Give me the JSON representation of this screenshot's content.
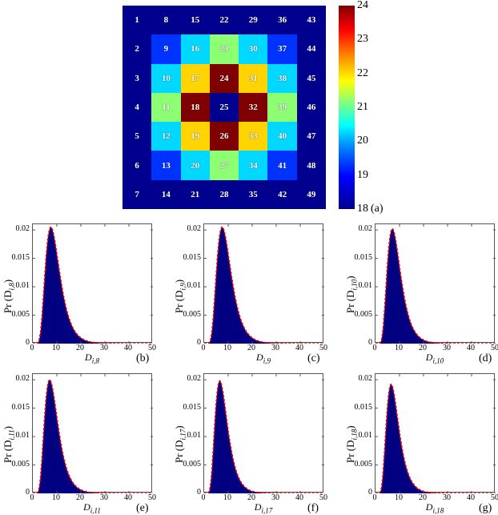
{
  "chart_data": [
    {
      "type": "heatmap",
      "panel": "(a)",
      "title": "",
      "grid_size": [
        7,
        7
      ],
      "cell_labels_column_major": [
        [
          1,
          2,
          3,
          4,
          5,
          6,
          7
        ],
        [
          8,
          9,
          10,
          11,
          12,
          13,
          14
        ],
        [
          15,
          16,
          17,
          18,
          19,
          20,
          21
        ],
        [
          22,
          23,
          24,
          25,
          26,
          27,
          28
        ],
        [
          29,
          30,
          31,
          32,
          33,
          34,
          35
        ],
        [
          36,
          37,
          38,
          39,
          40,
          41,
          42
        ],
        [
          43,
          44,
          45,
          46,
          47,
          48,
          49
        ]
      ],
      "values_row_major": [
        [
          18,
          18,
          18,
          18,
          18,
          18,
          18
        ],
        [
          18,
          19,
          20,
          21,
          20,
          19,
          18
        ],
        [
          18,
          20,
          22,
          24,
          22,
          20,
          18
        ],
        [
          18,
          21,
          24,
          18,
          24,
          21,
          18
        ],
        [
          18,
          20,
          22,
          24,
          22,
          20,
          18
        ],
        [
          18,
          19,
          20,
          21,
          20,
          19,
          18
        ],
        [
          18,
          18,
          18,
          18,
          18,
          18,
          18
        ]
      ],
      "colorbar": {
        "min": 18,
        "max": 24,
        "ticks": [
          "24",
          "23",
          "22",
          "21",
          "20",
          "19",
          "18"
        ],
        "colormap": "jet"
      }
    },
    {
      "type": "bar",
      "panel": "(b)",
      "xlabel": "D_{i,8}",
      "ylabel": "Pr(D_{i,8})",
      "xlim": [
        0,
        50
      ],
      "ylim": [
        0,
        0.021
      ],
      "peak_x": 7.5,
      "peak_y": 0.0205,
      "fit_line": "red dashed"
    },
    {
      "type": "bar",
      "panel": "(c)",
      "xlabel": "D_{i,9}",
      "ylabel": "Pr(D_{i,9})",
      "xlim": [
        0,
        50
      ],
      "ylim": [
        0,
        0.021
      ],
      "peak_x": 7.5,
      "peak_y": 0.0205,
      "fit_line": "red dashed"
    },
    {
      "type": "bar",
      "panel": "(d)",
      "xlabel": "D_{i,10}",
      "ylabel": "Pr(D_{i,10})",
      "xlim": [
        0,
        50
      ],
      "ylim": [
        0,
        0.021
      ],
      "peak_x": 7,
      "peak_y": 0.0202,
      "fit_line": "red dashed"
    },
    {
      "type": "bar",
      "panel": "(e)",
      "xlabel": "D_{i,11}",
      "ylabel": "Pr(D_{i,11})",
      "xlim": [
        0,
        50
      ],
      "ylim": [
        0,
        0.021
      ],
      "peak_x": 7,
      "peak_y": 0.02,
      "fit_line": "red dashed"
    },
    {
      "type": "bar",
      "panel": "(f)",
      "xlabel": "D_{i,17}",
      "ylabel": "Pr(D_{i,17})",
      "xlim": [
        0,
        50
      ],
      "ylim": [
        0,
        0.021
      ],
      "peak_x": 6.5,
      "peak_y": 0.0198,
      "fit_line": "red dashed"
    },
    {
      "type": "bar",
      "panel": "(g)",
      "xlabel": "D_{i,18}",
      "ylabel": "Pr(D_{i,18})",
      "xlim": [
        0,
        50
      ],
      "ylim": [
        0,
        0.021
      ],
      "peak_x": 6.5,
      "peak_y": 0.0192,
      "fit_line": "red dashed"
    }
  ],
  "heatmap": {
    "panel_label": "(a)",
    "colorbar_ticks": [
      "24",
      "23",
      "22",
      "21",
      "20",
      "19",
      "18"
    ]
  },
  "histograms": {
    "yticks": [
      "0.02",
      "0.015",
      "0.01",
      "0.005",
      "0"
    ],
    "xticks": [
      "0",
      "10",
      "20",
      "30",
      "40",
      "50"
    ],
    "panels": [
      {
        "letter": "(b)",
        "ylabel": "Pr (D",
        "ysub": "i,8",
        "xlabel": "D",
        "xsub": "i,8"
      },
      {
        "letter": "(c)",
        "ylabel": "Pr (D",
        "ysub": "i,9",
        "xlabel": "D",
        "xsub": "i,9"
      },
      {
        "letter": "(d)",
        "ylabel": "Pr (D",
        "ysub": "i,10",
        "xlabel": "D",
        "xsub": "i,10"
      },
      {
        "letter": "(e)",
        "ylabel": "Pr (D",
        "ysub": "i,11",
        "xlabel": "D",
        "xsub": "i,11"
      },
      {
        "letter": "(f)",
        "ylabel": "Pr (D",
        "ysub": "i,17",
        "xlabel": "D",
        "xsub": "i,17"
      },
      {
        "letter": "(g)",
        "ylabel": "Pr (D",
        "ysub": "i,18",
        "xlabel": "D",
        "xsub": "i,18"
      }
    ]
  },
  "colors": {
    "18": "#00008f",
    "19": "#0033ff",
    "20": "#00d8ff",
    "21": "#8cff73",
    "22": "#ffd400",
    "24": "#7f0000",
    "histogram_fill": "#000080",
    "fit_line": "#ff0000"
  }
}
